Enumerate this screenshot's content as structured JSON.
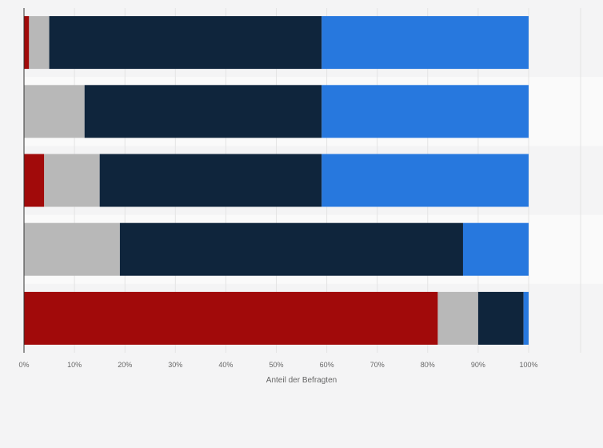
{
  "chart_data": {
    "type": "bar",
    "orientation": "horizontal",
    "stacked": true,
    "title": "",
    "xlabel": "Anteil der Befragten",
    "ylabel": "",
    "xlim": [
      0,
      100
    ],
    "x_ticks": [
      "0%",
      "10%",
      "20%",
      "30%",
      "40%",
      "50%",
      "60%",
      "70%",
      "80%",
      "90%",
      "100%"
    ],
    "categories": [
      "",
      "",
      "",
      "",
      ""
    ],
    "series": [
      {
        "name": "",
        "color": "#a10a0a",
        "values": [
          1,
          0,
          4,
          0,
          82
        ]
      },
      {
        "name": "",
        "color": "#b8b8b8",
        "values": [
          4,
          12,
          11,
          19,
          8
        ]
      },
      {
        "name": "",
        "color": "#0f253c",
        "values": [
          54,
          47,
          44,
          68,
          9
        ]
      },
      {
        "name": "",
        "color": "#2778de",
        "values": [
          41,
          41,
          41,
          13,
          1
        ]
      }
    ],
    "legend": "none",
    "grid": true
  }
}
